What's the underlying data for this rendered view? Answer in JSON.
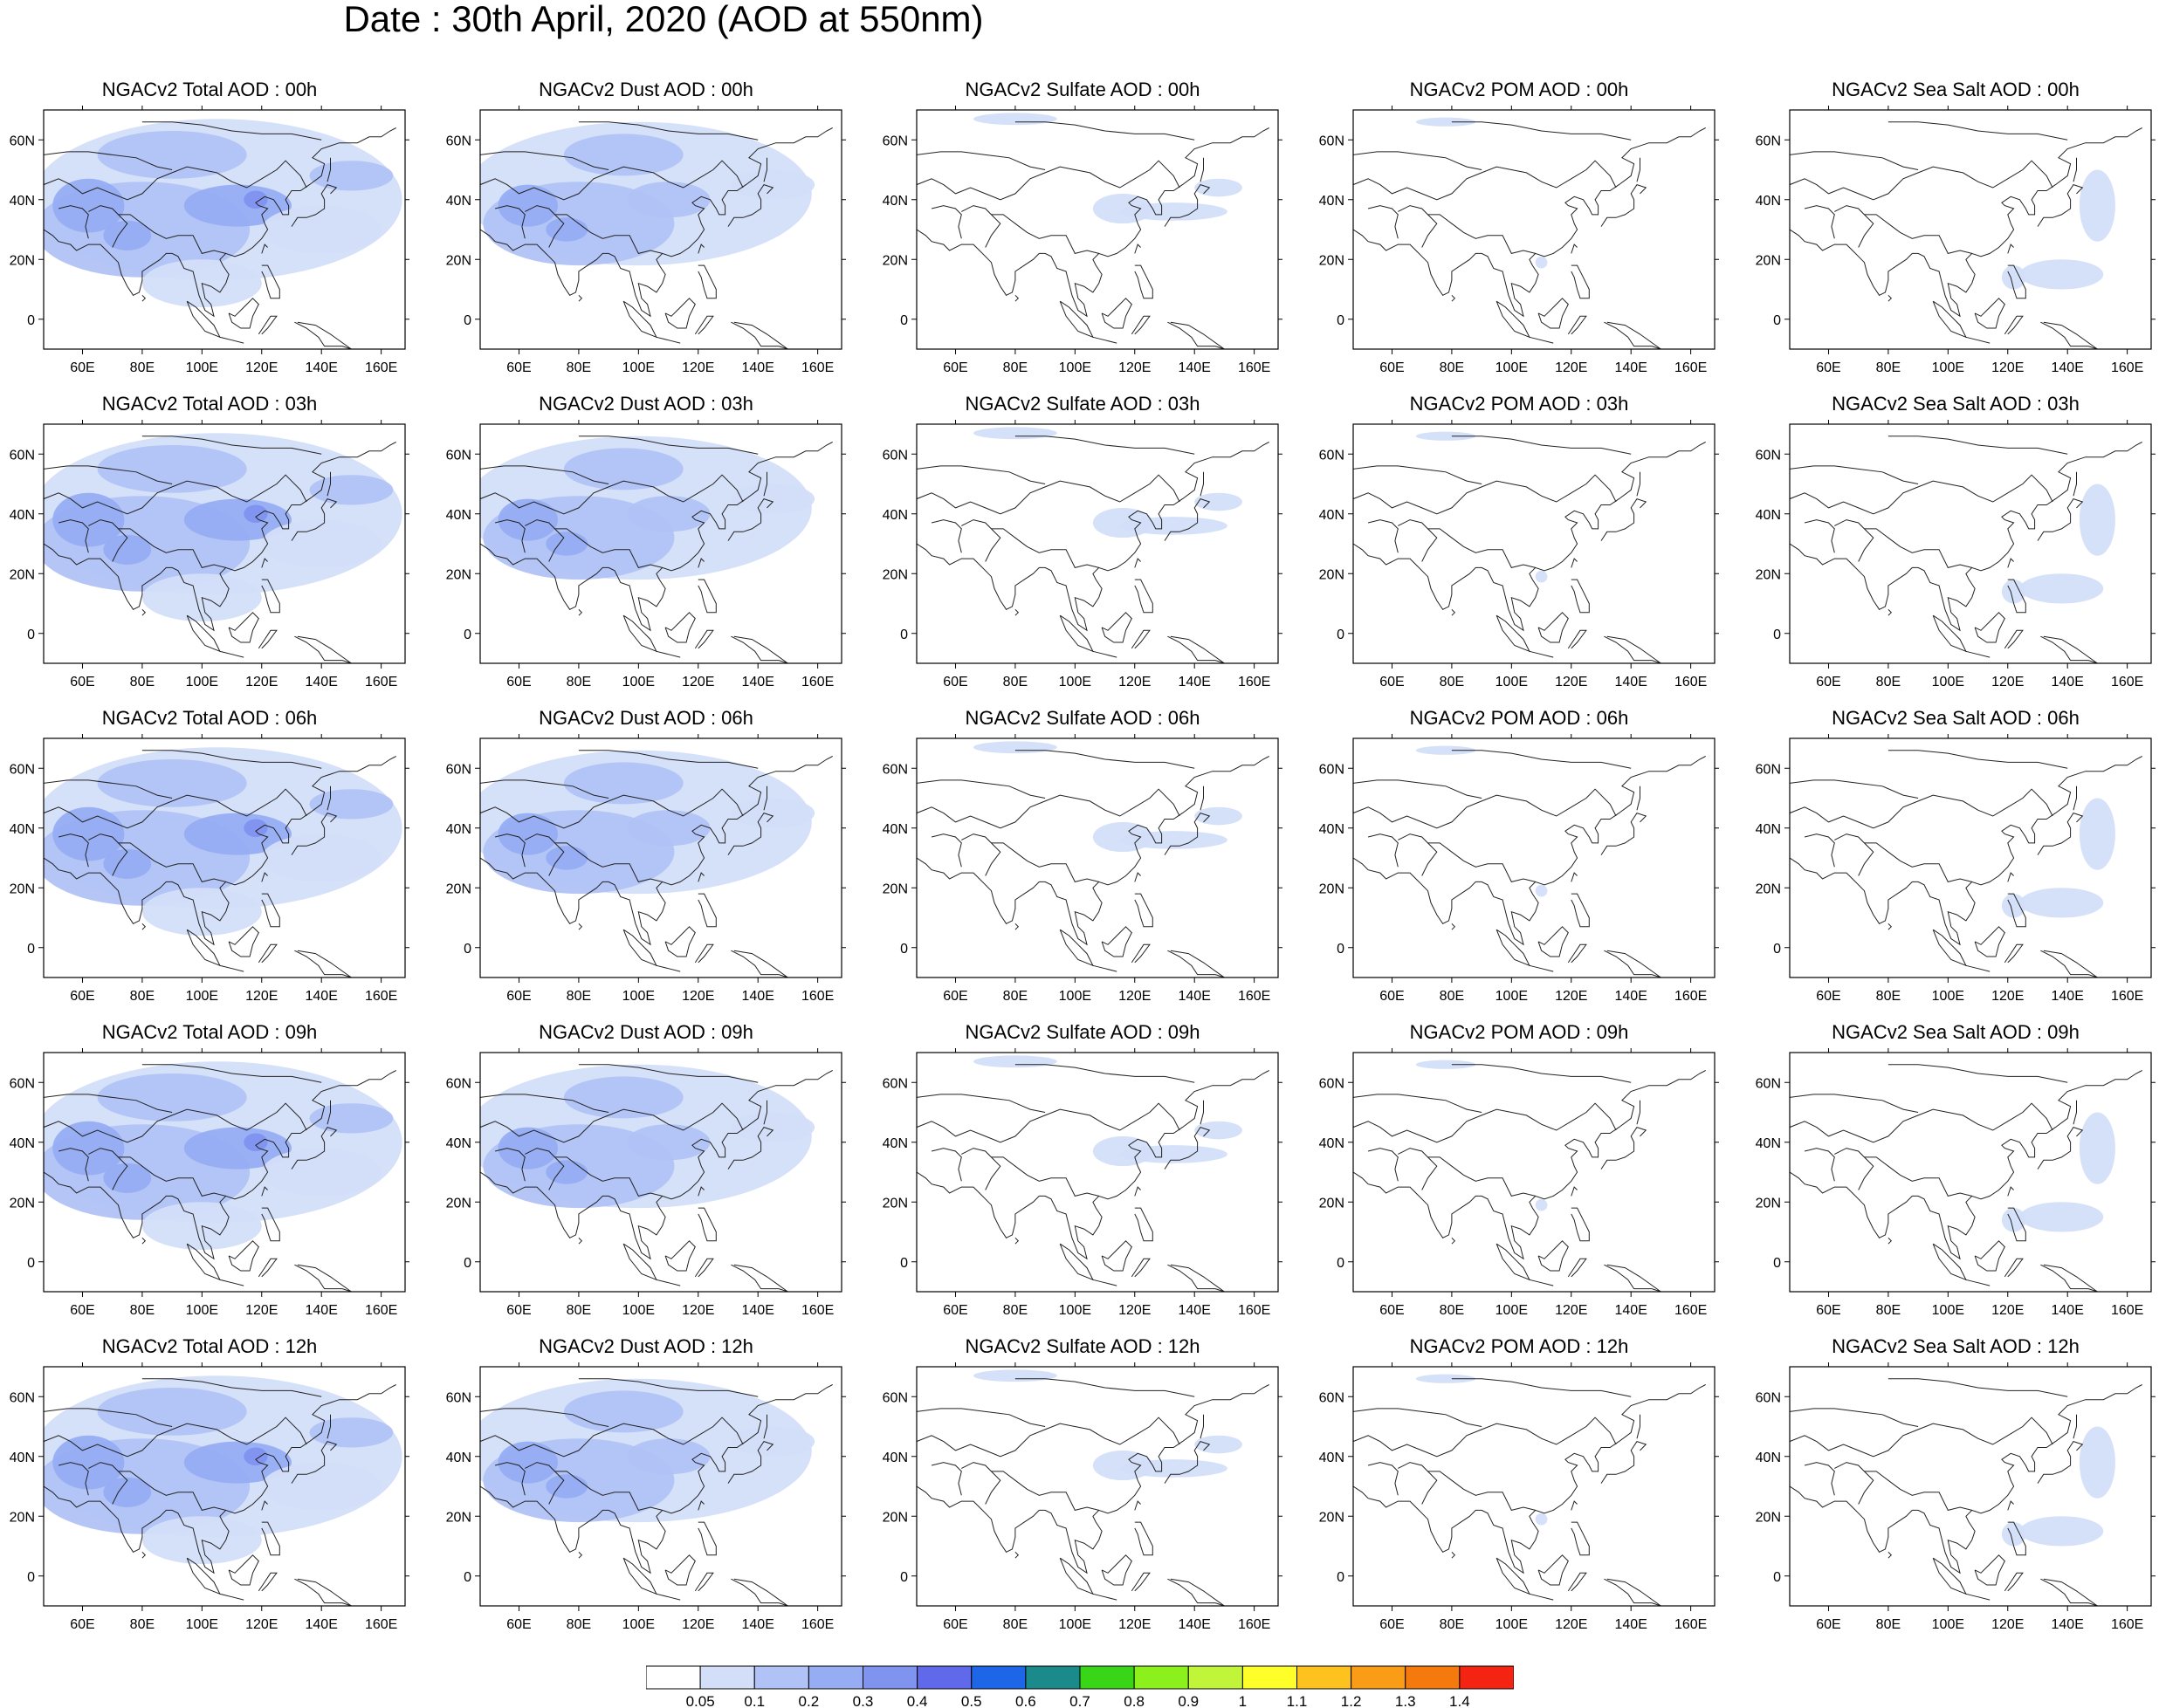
{
  "title": "Date : 30th April, 2020 (AOD at 550nm)",
  "lon_ticks": [
    "60E",
    "80E",
    "100E",
    "120E",
    "140E",
    "160E"
  ],
  "lat_ticks": [
    "60N",
    "40N",
    "20N",
    "0"
  ],
  "colors": {
    "levels": [
      "#ffffff",
      "#d3def9",
      "#b1c3f6",
      "#96adf3",
      "#7f94ef",
      "#5f69ea",
      "#1d66e8",
      "#1a8a8a",
      "#38d617",
      "#8bf01b",
      "#c1f53a",
      "#fefe28",
      "#fdc21e",
      "#fb9c17",
      "#f57a0e",
      "#f52312"
    ],
    "coast": "#222222"
  },
  "colorbar": {
    "labels": [
      "0.05",
      "0.1",
      "0.2",
      "0.3",
      "0.4",
      "0.5",
      "0.6",
      "0.7",
      "0.8",
      "0.9",
      "1",
      "1.1",
      "1.2",
      "1.3",
      "1.4"
    ]
  },
  "rows": [
    {
      "panels": [
        {
          "title": "NGACv2 Total AOD : 00h",
          "kind": "total"
        },
        {
          "title": "NGACv2 Dust AOD : 00h",
          "kind": "dust"
        },
        {
          "title": "NGACv2 Sulfate AOD : 00h",
          "kind": "sulfate"
        },
        {
          "title": "NGACv2 POM AOD : 00h",
          "kind": "pom"
        },
        {
          "title": "NGACv2 Sea Salt AOD : 00h",
          "kind": "seasalt"
        }
      ]
    },
    {
      "panels": [
        {
          "title": "NGACv2 Total AOD : 03h",
          "kind": "total"
        },
        {
          "title": "NGACv2 Dust AOD : 03h",
          "kind": "dust"
        },
        {
          "title": "NGACv2 Sulfate AOD : 03h",
          "kind": "sulfate"
        },
        {
          "title": "NGACv2 POM AOD : 03h",
          "kind": "pom"
        },
        {
          "title": "NGACv2 Sea Salt AOD : 03h",
          "kind": "seasalt"
        }
      ]
    },
    {
      "panels": [
        {
          "title": "NGACv2 Total AOD : 06h",
          "kind": "total"
        },
        {
          "title": "NGACv2 Dust AOD : 06h",
          "kind": "dust"
        },
        {
          "title": "NGACv2 Sulfate AOD : 06h",
          "kind": "sulfate"
        },
        {
          "title": "NGACv2 POM AOD : 06h",
          "kind": "pom"
        },
        {
          "title": "NGACv2 Sea Salt AOD : 06h",
          "kind": "seasalt"
        }
      ]
    },
    {
      "panels": [
        {
          "title": "NGACv2 Total AOD : 09h",
          "kind": "total"
        },
        {
          "title": "NGACv2 Dust AOD : 09h",
          "kind": "dust"
        },
        {
          "title": "NGACv2 Sulfate AOD : 09h",
          "kind": "sulfate"
        },
        {
          "title": "NGACv2 POM AOD : 09h",
          "kind": "pom"
        },
        {
          "title": "NGACv2 Sea Salt  AOD : 09h",
          "kind": "seasalt"
        }
      ]
    },
    {
      "panels": [
        {
          "title": "NGACv2 Total AOD  : 12h",
          "kind": "total"
        },
        {
          "title": "NGACv2 Dust AOD : 12h",
          "kind": "dust"
        },
        {
          "title": "NGACv2 Sulfate AOD : 12h",
          "kind": "sulfate"
        },
        {
          "title": "NGACv2 POM  AOD : 12h",
          "kind": "pom"
        },
        {
          "title": "NGACv2 Sea Salt  AOD : 12h",
          "kind": "seasalt"
        }
      ]
    }
  ]
}
